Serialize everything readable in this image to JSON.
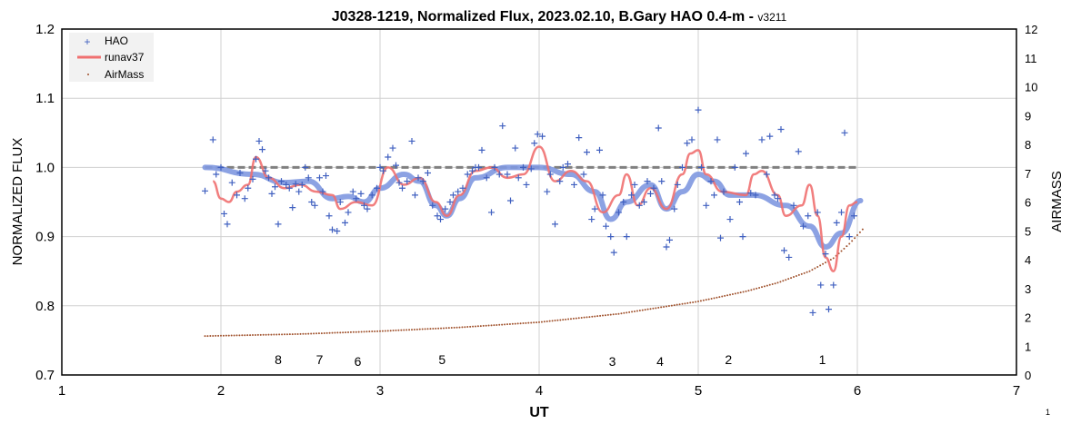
{
  "chart_data": {
    "type": "scatter",
    "title": "J0328-1219, Normalized Flux, 2023.02.10, B.Gary HAO 0.4-m - ",
    "title_version": "v3211",
    "xlabel": "UT",
    "ylabel": "NORMALIZED FLUX",
    "y2label": "AIRMASS",
    "xlim": [
      1,
      7
    ],
    "ylim": [
      0.7,
      1.2
    ],
    "y2lim": [
      0,
      12
    ],
    "x_ticks": [
      "1",
      "2",
      "3",
      "4",
      "5",
      "6",
      "7"
    ],
    "y_ticks": [
      "0.7",
      "0.8",
      "0.9",
      "1.0",
      "1.1",
      "1.2"
    ],
    "y2_ticks": [
      "0",
      "1",
      "2",
      "3",
      "4",
      "5",
      "6",
      "7",
      "8",
      "9",
      "10",
      "11",
      "12"
    ],
    "legend": {
      "placement": "top-left",
      "entries": [
        "HAO",
        "runav37",
        "AirMass"
      ]
    },
    "page_number": "1",
    "colors": {
      "hao": "#4060c0",
      "runav": "#f07070",
      "trend": "#7f98e0",
      "airmass": "#a0522d",
      "ref": "#808080"
    },
    "reference_line": {
      "y": 1.0,
      "x": [
        1.9,
        6.0
      ]
    },
    "annotations": [
      {
        "x": 2.36,
        "y": 0.722,
        "text": "8"
      },
      {
        "x": 2.62,
        "y": 0.722,
        "text": "7"
      },
      {
        "x": 2.86,
        "y": 0.72,
        "text": "6"
      },
      {
        "x": 3.39,
        "y": 0.722,
        "text": "5"
      },
      {
        "x": 4.46,
        "y": 0.72,
        "text": "3"
      },
      {
        "x": 4.76,
        "y": 0.72,
        "text": "4"
      },
      {
        "x": 5.19,
        "y": 0.722,
        "text": "2"
      },
      {
        "x": 5.78,
        "y": 0.722,
        "text": "1"
      }
    ],
    "series": [
      {
        "name": "HAO",
        "type": "scatter",
        "points": [
          [
            1.9,
            0.966
          ],
          [
            1.95,
            1.04
          ],
          [
            1.97,
            0.99
          ],
          [
            2.0,
            1.0
          ],
          [
            2.02,
            0.933
          ],
          [
            2.04,
            0.918
          ],
          [
            2.07,
            0.978
          ],
          [
            2.1,
            0.96
          ],
          [
            2.12,
            0.992
          ],
          [
            2.15,
            0.955
          ],
          [
            2.17,
            0.97
          ],
          [
            2.2,
            0.983
          ],
          [
            2.22,
            1.012
          ],
          [
            2.24,
            1.038
          ],
          [
            2.26,
            1.026
          ],
          [
            2.28,
            0.995
          ],
          [
            2.3,
            0.985
          ],
          [
            2.32,
            0.962
          ],
          [
            2.34,
            0.972
          ],
          [
            2.36,
            0.918
          ],
          [
            2.38,
            0.98
          ],
          [
            2.41,
            0.975
          ],
          [
            2.43,
            0.97
          ],
          [
            2.45,
            0.942
          ],
          [
            2.47,
            0.976
          ],
          [
            2.49,
            0.965
          ],
          [
            2.51,
            0.975
          ],
          [
            2.53,
            1.0
          ],
          [
            2.55,
            0.985
          ],
          [
            2.57,
            0.95
          ],
          [
            2.59,
            0.945
          ],
          [
            2.62,
            0.985
          ],
          [
            2.64,
            0.965
          ],
          [
            2.66,
            0.988
          ],
          [
            2.68,
            0.93
          ],
          [
            2.7,
            0.91
          ],
          [
            2.73,
            0.908
          ],
          [
            2.75,
            0.95
          ],
          [
            2.78,
            0.92
          ],
          [
            2.8,
            0.935
          ],
          [
            2.83,
            0.965
          ],
          [
            2.85,
            0.955
          ],
          [
            2.88,
            0.962
          ],
          [
            2.9,
            0.945
          ],
          [
            2.92,
            0.94
          ],
          [
            2.95,
            0.96
          ],
          [
            2.98,
            0.97
          ],
          [
            3.0,
            1.0
          ],
          [
            3.02,
            0.995
          ],
          [
            3.05,
            1.015
          ],
          [
            3.08,
            1.028
          ],
          [
            3.1,
            1.003
          ],
          [
            3.12,
            0.978
          ],
          [
            3.14,
            0.97
          ],
          [
            3.17,
            0.98
          ],
          [
            3.2,
            1.038
          ],
          [
            3.22,
            0.96
          ],
          [
            3.24,
            0.985
          ],
          [
            3.27,
            0.98
          ],
          [
            3.3,
            0.992
          ],
          [
            3.33,
            0.945
          ],
          [
            3.36,
            0.93
          ],
          [
            3.38,
            0.925
          ],
          [
            3.41,
            0.94
          ],
          [
            3.44,
            0.95
          ],
          [
            3.46,
            0.96
          ],
          [
            3.49,
            0.965
          ],
          [
            3.52,
            0.97
          ],
          [
            3.55,
            0.99
          ],
          [
            3.58,
            0.995
          ],
          [
            3.6,
            1.0
          ],
          [
            3.62,
            1.0
          ],
          [
            3.64,
            1.025
          ],
          [
            3.67,
            0.985
          ],
          [
            3.7,
            0.935
          ],
          [
            3.72,
            1.0
          ],
          [
            3.75,
            0.99
          ],
          [
            3.77,
            1.06
          ],
          [
            3.8,
            0.99
          ],
          [
            3.82,
            0.952
          ],
          [
            3.85,
            1.028
          ],
          [
            3.87,
            0.985
          ],
          [
            3.9,
            1.0
          ],
          [
            3.92,
            0.975
          ],
          [
            3.95,
            0.998
          ],
          [
            3.97,
            1.035
          ],
          [
            3.99,
            1.048
          ],
          [
            4.02,
            1.045
          ],
          [
            4.05,
            0.965
          ],
          [
            4.07,
            0.99
          ],
          [
            4.1,
            0.918
          ],
          [
            4.13,
            0.98
          ],
          [
            4.15,
            1.0
          ],
          [
            4.18,
            1.005
          ],
          [
            4.22,
            0.975
          ],
          [
            4.25,
            1.043
          ],
          [
            4.28,
            0.99
          ],
          [
            4.3,
            1.022
          ],
          [
            4.33,
            0.925
          ],
          [
            4.35,
            0.94
          ],
          [
            4.38,
            1.025
          ],
          [
            4.4,
            0.96
          ],
          [
            4.42,
            0.915
          ],
          [
            4.45,
            0.9
          ],
          [
            4.47,
            0.877
          ],
          [
            4.5,
            0.935
          ],
          [
            4.53,
            0.95
          ],
          [
            4.55,
            0.9
          ],
          [
            4.58,
            0.96
          ],
          [
            4.6,
            0.975
          ],
          [
            4.63,
            0.945
          ],
          [
            4.66,
            0.95
          ],
          [
            4.68,
            0.98
          ],
          [
            4.7,
            0.962
          ],
          [
            4.72,
            0.97
          ],
          [
            4.75,
            1.057
          ],
          [
            4.77,
            0.98
          ],
          [
            4.8,
            0.885
          ],
          [
            4.82,
            0.895
          ],
          [
            4.85,
            0.94
          ],
          [
            4.87,
            0.975
          ],
          [
            4.9,
            1.0
          ],
          [
            4.93,
            1.035
          ],
          [
            4.96,
            1.04
          ],
          [
            5.0,
            1.083
          ],
          [
            5.02,
            1.0
          ],
          [
            5.05,
            0.945
          ],
          [
            5.08,
            0.98
          ],
          [
            5.1,
            0.96
          ],
          [
            5.12,
            1.04
          ],
          [
            5.14,
            0.898
          ],
          [
            5.16,
            0.965
          ],
          [
            5.2,
            0.925
          ],
          [
            5.23,
            1.0
          ],
          [
            5.26,
            0.95
          ],
          [
            5.28,
            0.9
          ],
          [
            5.3,
            1.02
          ],
          [
            5.33,
            0.963
          ],
          [
            5.36,
            0.96
          ],
          [
            5.4,
            1.04
          ],
          [
            5.43,
            0.99
          ],
          [
            5.45,
            1.045
          ],
          [
            5.48,
            0.96
          ],
          [
            5.5,
            0.955
          ],
          [
            5.52,
            1.055
          ],
          [
            5.54,
            0.88
          ],
          [
            5.57,
            0.87
          ],
          [
            5.6,
            0.945
          ],
          [
            5.63,
            1.023
          ],
          [
            5.66,
            0.915
          ],
          [
            5.69,
            0.93
          ],
          [
            5.72,
            0.79
          ],
          [
            5.75,
            0.935
          ],
          [
            5.77,
            0.83
          ],
          [
            5.8,
            0.875
          ],
          [
            5.82,
            0.795
          ],
          [
            5.85,
            0.83
          ],
          [
            5.87,
            0.92
          ],
          [
            5.9,
            0.935
          ],
          [
            5.92,
            1.05
          ],
          [
            5.95,
            0.9
          ],
          [
            5.98,
            0.93
          ]
        ]
      },
      {
        "name": "runav37",
        "type": "line",
        "points": [
          [
            1.95,
            0.98
          ],
          [
            2.0,
            0.955
          ],
          [
            2.05,
            0.95
          ],
          [
            2.1,
            0.965
          ],
          [
            2.17,
            0.975
          ],
          [
            2.22,
            1.015
          ],
          [
            2.3,
            0.985
          ],
          [
            2.4,
            0.97
          ],
          [
            2.5,
            0.975
          ],
          [
            2.6,
            0.965
          ],
          [
            2.7,
            0.96
          ],
          [
            2.75,
            0.94
          ],
          [
            2.85,
            0.95
          ],
          [
            2.95,
            0.945
          ],
          [
            3.05,
            1.0
          ],
          [
            3.15,
            0.975
          ],
          [
            3.25,
            0.985
          ],
          [
            3.35,
            0.95
          ],
          [
            3.42,
            0.93
          ],
          [
            3.5,
            0.96
          ],
          [
            3.6,
            0.995
          ],
          [
            3.7,
            1.0
          ],
          [
            3.8,
            0.985
          ],
          [
            3.9,
            0.99
          ],
          [
            4.0,
            1.03
          ],
          [
            4.1,
            0.98
          ],
          [
            4.2,
            0.995
          ],
          [
            4.3,
            0.98
          ],
          [
            4.4,
            0.935
          ],
          [
            4.5,
            0.96
          ],
          [
            4.55,
            0.99
          ],
          [
            4.62,
            0.945
          ],
          [
            4.7,
            0.97
          ],
          [
            4.8,
            0.94
          ],
          [
            4.9,
            0.99
          ],
          [
            4.95,
            1.02
          ],
          [
            5.0,
            1.025
          ],
          [
            5.05,
            0.99
          ],
          [
            5.15,
            0.965
          ],
          [
            5.3,
            0.96
          ],
          [
            5.35,
            0.99
          ],
          [
            5.4,
            0.995
          ],
          [
            5.5,
            0.96
          ],
          [
            5.55,
            0.93
          ],
          [
            5.65,
            0.945
          ],
          [
            5.7,
            0.975
          ],
          [
            5.75,
            0.93
          ],
          [
            5.8,
            0.87
          ],
          [
            5.85,
            0.85
          ],
          [
            5.9,
            0.9
          ],
          [
            5.95,
            0.945
          ],
          [
            6.0,
            0.95
          ]
        ]
      },
      {
        "name": "",
        "type": "smooth",
        "points": [
          [
            1.9,
            1.0
          ],
          [
            2.2,
            0.99
          ],
          [
            2.4,
            0.978
          ],
          [
            2.55,
            0.98
          ],
          [
            2.7,
            0.955
          ],
          [
            2.8,
            0.958
          ],
          [
            2.9,
            0.95
          ],
          [
            3.0,
            0.97
          ],
          [
            3.15,
            0.99
          ],
          [
            3.25,
            0.98
          ],
          [
            3.35,
            0.945
          ],
          [
            3.42,
            0.93
          ],
          [
            3.5,
            0.955
          ],
          [
            3.6,
            0.985
          ],
          [
            3.8,
            1.0
          ],
          [
            4.0,
            1.0
          ],
          [
            4.2,
            0.99
          ],
          [
            4.35,
            0.965
          ],
          [
            4.45,
            0.925
          ],
          [
            4.55,
            0.95
          ],
          [
            4.7,
            0.975
          ],
          [
            4.8,
            0.94
          ],
          [
            4.9,
            0.965
          ],
          [
            5.0,
            0.99
          ],
          [
            5.1,
            0.98
          ],
          [
            5.2,
            0.96
          ],
          [
            5.35,
            0.96
          ],
          [
            5.55,
            0.945
          ],
          [
            5.7,
            0.915
          ],
          [
            5.8,
            0.885
          ],
          [
            5.9,
            0.905
          ],
          [
            6.02,
            0.952
          ]
        ]
      },
      {
        "name": "AirMass",
        "type": "scatter",
        "axis": "y2",
        "points": [
          [
            1.9,
            1.35
          ],
          [
            2.5,
            1.42
          ],
          [
            3.0,
            1.52
          ],
          [
            3.5,
            1.65
          ],
          [
            4.0,
            1.83
          ],
          [
            4.5,
            2.12
          ],
          [
            5.0,
            2.55
          ],
          [
            5.3,
            2.9
          ],
          [
            5.5,
            3.2
          ],
          [
            5.7,
            3.6
          ],
          [
            5.85,
            4.05
          ],
          [
            5.95,
            4.55
          ],
          [
            6.05,
            5.15
          ]
        ]
      }
    ]
  }
}
